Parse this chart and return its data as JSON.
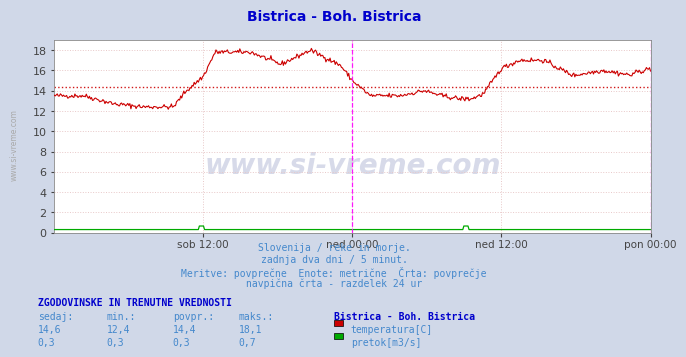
{
  "title": "Bistrica - Boh. Bistrica",
  "title_color": "#0000cc",
  "bg_color": "#d0d8e8",
  "plot_bg_color": "#ffffff",
  "grid_color": "#e8c8c8",
  "temp_color": "#cc0000",
  "flow_color": "#00aa00",
  "avg_line_color": "#cc0000",
  "avg_line_value": 14.4,
  "vline_color": "#ff00ff",
  "ylim": [
    0,
    19
  ],
  "yticks": [
    0,
    2,
    4,
    6,
    8,
    10,
    12,
    14,
    16,
    18
  ],
  "xlabel_ticks": [
    "sob 12:00",
    "ned 00:00",
    "ned 12:00",
    "pon 00:00"
  ],
  "xlabel_tick_positions": [
    0.25,
    0.5,
    0.75,
    1.0
  ],
  "vline_positions": [
    0.5,
    1.0
  ],
  "watermark": "www.si-vreme.com",
  "watermark_color": "#223388",
  "watermark_alpha": 0.18,
  "subtitle_lines": [
    "Slovenija / reke in morje.",
    "zadnja dva dni / 5 minut.",
    "Meritve: povprečne  Enote: metrične  Črta: povprečje",
    "navpična črta - razdelek 24 ur"
  ],
  "subtitle_color": "#4488cc",
  "table_header": "ZGODOVINSKE IN TRENUTNE VREDNOSTI",
  "table_cols": [
    "sedaj:",
    "min.:",
    "povpr.:",
    "maks.:"
  ],
  "table_temp": [
    "14,6",
    "12,4",
    "14,4",
    "18,1"
  ],
  "table_flow": [
    "0,3",
    "0,3",
    "0,3",
    "0,7"
  ],
  "legend_title": "Bistrica - Boh. Bistrica",
  "legend_items": [
    "temperatura[C]",
    "pretok[m3/s]"
  ],
  "legend_colors": [
    "#cc0000",
    "#00aa00"
  ],
  "table_color": "#0000cc",
  "left_label": "www.si-vreme.com",
  "left_label_color": "#aaaaaa"
}
